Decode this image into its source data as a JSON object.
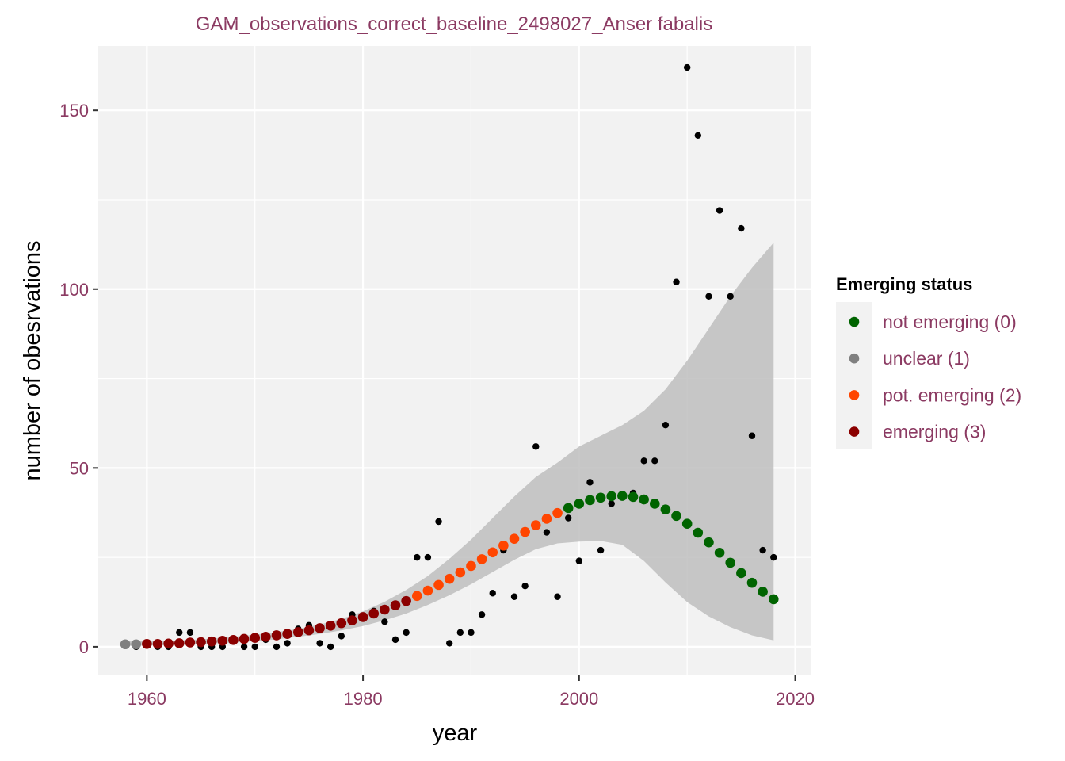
{
  "chart_data": {
    "type": "scatter",
    "title": "GAM_observations_correct_baseline_2498027_Anser fabalis",
    "xlabel": "year",
    "ylabel": "number of obesrvations",
    "xlim": [
      1955.5,
      2021.5
    ],
    "ylim": [
      -8,
      168
    ],
    "x_ticks": [
      1960,
      1980,
      2000,
      2020
    ],
    "y_ticks": [
      0,
      50,
      100,
      150
    ],
    "grid": true,
    "legend": {
      "title": "Emerging status",
      "position": "right",
      "entries": [
        {
          "label": "not emerging (0)",
          "color": "#006400"
        },
        {
          "label": "unclear (1)",
          "color": "#808080"
        },
        {
          "label": "pot. emerging (2)",
          "color": "#FF4500"
        },
        {
          "label": "emerging (3)",
          "color": "#8B0000"
        }
      ]
    },
    "colors": {
      "panel_background": "#F2F2F2",
      "grid": "#FFFFFF",
      "band": "#BEBEBE",
      "observation_point": "#000000"
    },
    "observations": {
      "name": "observed",
      "x": [
        1958,
        1959,
        1960,
        1961,
        1962,
        1963,
        1964,
        1965,
        1966,
        1967,
        1968,
        1969,
        1970,
        1971,
        1972,
        1973,
        1974,
        1975,
        1976,
        1977,
        1978,
        1979,
        1980,
        1981,
        1982,
        1983,
        1984,
        1985,
        1986,
        1987,
        1988,
        1989,
        1990,
        1991,
        1992,
        1993,
        1994,
        1995,
        1996,
        1997,
        1998,
        1999,
        2000,
        2001,
        2002,
        2003,
        2004,
        2005,
        2006,
        2007,
        2008,
        2009,
        2010,
        2011,
        2012,
        2013,
        2014,
        2015,
        2016,
        2017,
        2018
      ],
      "y": [
        1,
        0,
        1,
        0,
        0,
        4,
        4,
        0,
        0,
        0,
        2,
        0,
        0,
        2,
        0,
        1,
        5,
        6,
        1,
        0,
        3,
        9,
        8,
        10,
        7,
        2,
        4,
        25,
        25,
        35,
        1,
        4,
        4,
        9,
        15,
        27,
        14,
        17,
        56,
        32,
        14,
        36,
        24,
        46,
        27,
        40,
        42,
        43,
        52,
        52,
        62,
        102,
        162,
        143,
        98,
        122,
        98,
        117,
        59,
        27,
        25
      ]
    },
    "gam_fit": {
      "x": [
        1958,
        1959,
        1960,
        1961,
        1962,
        1963,
        1964,
        1965,
        1966,
        1967,
        1968,
        1969,
        1970,
        1971,
        1972,
        1973,
        1974,
        1975,
        1976,
        1977,
        1978,
        1979,
        1980,
        1981,
        1982,
        1983,
        1984,
        1985,
        1986,
        1987,
        1988,
        1989,
        1990,
        1991,
        1992,
        1993,
        1994,
        1995,
        1996,
        1997,
        1998,
        1999,
        2000,
        2001,
        2002,
        2003,
        2004,
        2005,
        2006,
        2007,
        2008,
        2009,
        2010,
        2011,
        2012,
        2013,
        2014,
        2015,
        2016,
        2017,
        2018
      ],
      "y": [
        0.7,
        0.7,
        0.8,
        0.8,
        0.9,
        1.0,
        1.2,
        1.3,
        1.5,
        1.7,
        1.9,
        2.2,
        2.5,
        2.8,
        3.2,
        3.6,
        4.1,
        4.6,
        5.2,
        5.9,
        6.6,
        7.4,
        8.3,
        9.3,
        10.4,
        11.6,
        12.8,
        14.2,
        15.7,
        17.3,
        19.0,
        20.8,
        22.6,
        24.5,
        26.4,
        28.3,
        30.2,
        32.1,
        34.0,
        35.8,
        37.4,
        38.8,
        40.0,
        41.0,
        41.7,
        42.1,
        42.2,
        41.9,
        41.2,
        40.0,
        38.4,
        36.6,
        34.4,
        31.9,
        29.2,
        26.3,
        23.5,
        20.6,
        17.9,
        15.4,
        13.3
      ],
      "status": [
        1,
        1,
        3,
        3,
        3,
        3,
        3,
        3,
        3,
        3,
        3,
        3,
        3,
        3,
        3,
        3,
        3,
        3,
        3,
        3,
        3,
        3,
        3,
        3,
        3,
        3,
        3,
        2,
        2,
        2,
        2,
        2,
        2,
        2,
        2,
        2,
        2,
        2,
        2,
        2,
        2,
        0,
        0,
        0,
        0,
        0,
        0,
        0,
        0,
        0,
        0,
        0,
        0,
        0,
        0,
        0,
        0,
        0,
        0,
        0,
        0
      ]
    },
    "confidence_band": {
      "x": [
        1958,
        1960,
        1962,
        1964,
        1966,
        1968,
        1970,
        1972,
        1974,
        1976,
        1978,
        1980,
        1982,
        1984,
        1986,
        1988,
        1990,
        1992,
        1994,
        1996,
        1998,
        2000,
        2002,
        2004,
        2006,
        2008,
        2010,
        2012,
        2014,
        2016,
        2018
      ],
      "lower": [
        0.3,
        0.4,
        0.5,
        0.7,
        0.9,
        1.2,
        1.6,
        2.1,
        2.8,
        3.6,
        4.6,
        5.8,
        7.4,
        9.3,
        11.7,
        14.4,
        17.5,
        20.9,
        24.3,
        27.3,
        28.9,
        29.4,
        29.6,
        28.5,
        24.0,
        18.0,
        12.5,
        8.5,
        5.5,
        3.2,
        1.8
      ],
      "upper": [
        1.5,
        1.6,
        1.7,
        1.9,
        2.3,
        2.8,
        3.4,
        4.1,
        5.0,
        6.2,
        7.8,
        9.9,
        12.6,
        15.9,
        19.8,
        24.6,
        30.0,
        36.0,
        42.0,
        47.5,
        51.5,
        56.0,
        59.0,
        62.0,
        66.0,
        72.0,
        80.0,
        89.0,
        98.0,
        106.0,
        113.0
      ]
    }
  }
}
